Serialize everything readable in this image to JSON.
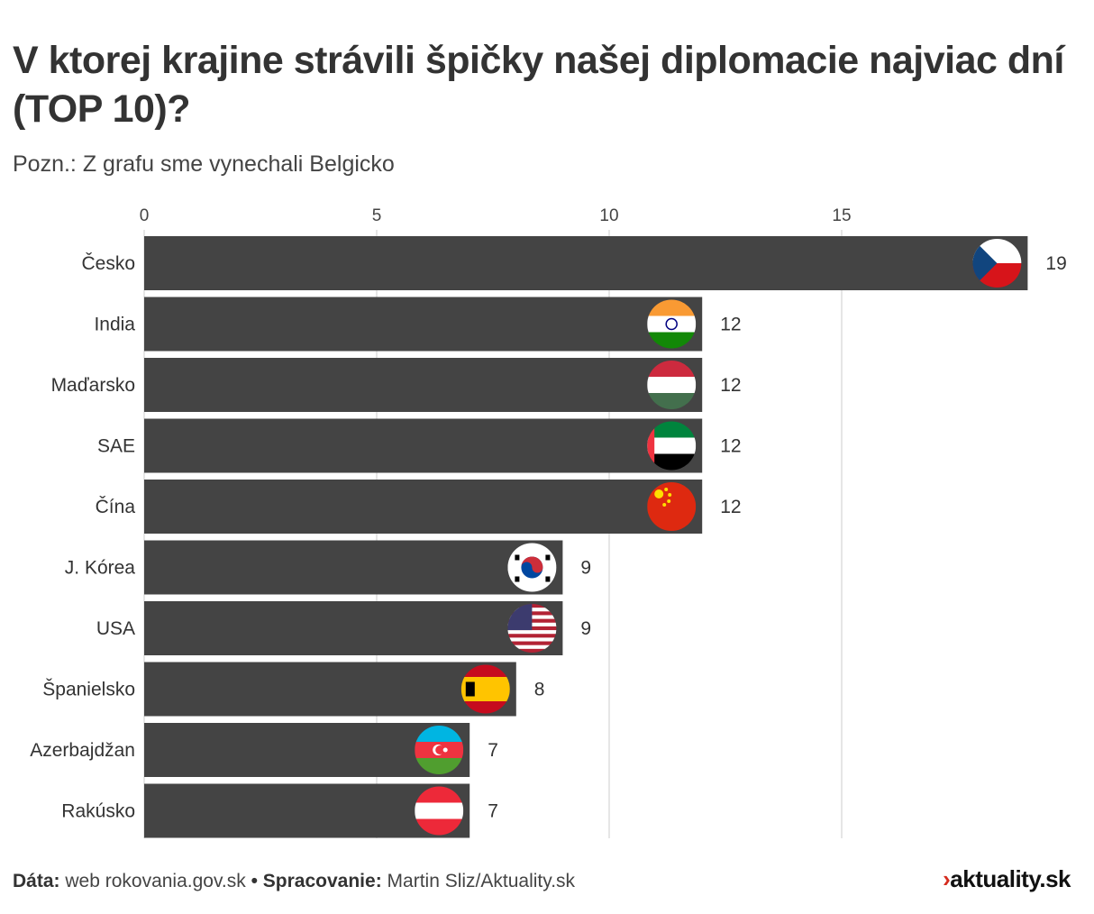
{
  "title": "V ktorej krajine strávili špičky našej diplomacie najviac dní (TOP 10)?",
  "subtitle": "Pozn.: Z grafu sme vynechali Belgicko",
  "footer": {
    "source_label": "Dáta:",
    "source": "web rokovania.gov.sk",
    "sep": "•",
    "processing_label": "Spracovanie:",
    "processing": "Martin Sliz/Aktuality.sk"
  },
  "logo": {
    "arrow": "›",
    "text": "aktuality.sk"
  },
  "colors": {
    "bar": "#444444",
    "grid": "#dddddd",
    "text": "#333333"
  },
  "chart_data": {
    "type": "bar",
    "orientation": "horizontal",
    "title": "V ktorej krajine strávili špičky našej diplomacie najviac dní (TOP 10)?",
    "xlabel": "",
    "ylabel": "",
    "xlim": [
      0,
      19
    ],
    "xticks": [
      0,
      5,
      10,
      15
    ],
    "grid": true,
    "categories": [
      "Česko",
      "India",
      "Maďarsko",
      "SAE",
      "Čína",
      "J. Kórea",
      "USA",
      "Španielsko",
      "Azerbajdžan",
      "Rakúsko"
    ],
    "flags": [
      "cz",
      "in",
      "hu",
      "ae",
      "cn",
      "kr",
      "us",
      "es",
      "az",
      "at"
    ],
    "values": [
      19,
      12,
      12,
      12,
      12,
      9,
      9,
      8,
      7,
      7
    ]
  }
}
